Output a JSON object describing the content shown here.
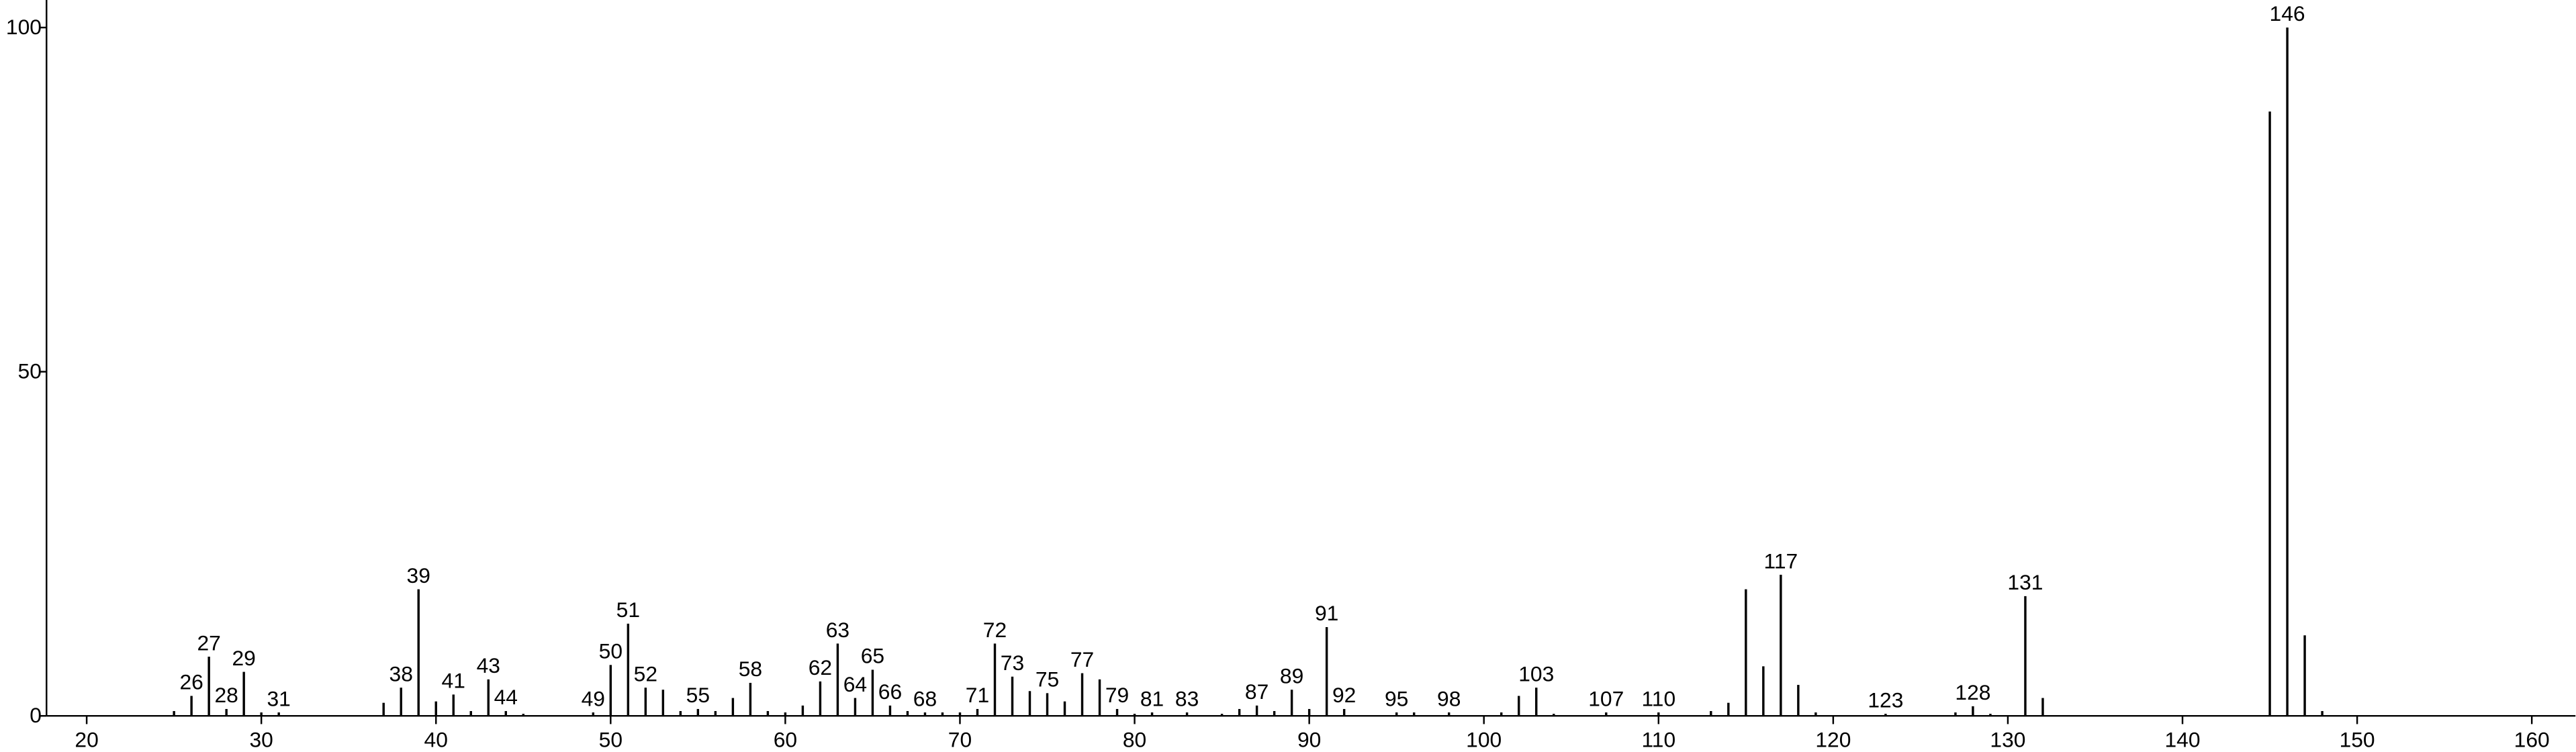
{
  "chart_data": {
    "type": "stem",
    "color": "#000000",
    "xlim": [
      17.7,
      162.5
    ],
    "ylim": [
      0,
      104
    ],
    "xticks": [
      20,
      30,
      40,
      50,
      60,
      70,
      80,
      90,
      100,
      110,
      120,
      130,
      140,
      150,
      160
    ],
    "yticks": [
      0,
      50,
      100
    ],
    "x": [
      25,
      26,
      27,
      28,
      29,
      30,
      31,
      37,
      38,
      39,
      40,
      41,
      42,
      43,
      44,
      45,
      49,
      50,
      51,
      52,
      53,
      54,
      55,
      56,
      57,
      58,
      59,
      60,
      61,
      62,
      63,
      64,
      65,
      66,
      67,
      68,
      69,
      70,
      71,
      72,
      73,
      74,
      75,
      76,
      77,
      78,
      79,
      80,
      81,
      83,
      85,
      86,
      87,
      88,
      89,
      90,
      91,
      92,
      95,
      96,
      98,
      101,
      102,
      103,
      104,
      107,
      110,
      113,
      114,
      115,
      116,
      117,
      118,
      119,
      123,
      127,
      128,
      129,
      131,
      132,
      145,
      146,
      147,
      148
    ],
    "values": [
      0.7,
      2.9,
      8.6,
      1,
      6.4,
      0.5,
      0.5,
      1.9,
      4.1,
      18.4,
      2.1,
      3.1,
      0.7,
      5.3,
      0.7,
      0.3,
      0.5,
      7.4,
      13.4,
      4.1,
      3.8,
      0.7,
      1,
      0.7,
      2.6,
      4.8,
      0.7,
      0.5,
      1.5,
      5,
      10.5,
      2.6,
      6.7,
      1.5,
      0.7,
      0.5,
      0.5,
      0.5,
      1,
      10.5,
      5.7,
      3.6,
      3.3,
      2.1,
      6.2,
      5.3,
      1,
      0.3,
      0.5,
      0.5,
      0.3,
      1,
      1.5,
      0.7,
      3.8,
      1,
      12.9,
      1,
      0.5,
      0.5,
      0.5,
      0.5,
      2.9,
      4.1,
      0.3,
      0.5,
      0.5,
      0.7,
      1.9,
      18.4,
      7.2,
      20.5,
      4.5,
      0.5,
      0.3,
      0.5,
      1.4,
      0.3,
      17.4,
      2.6,
      87.8,
      100,
      11.7,
      0.7
    ],
    "peak_labels": [
      26,
      27,
      28,
      29,
      31,
      38,
      39,
      41,
      43,
      44,
      49,
      50,
      51,
      52,
      55,
      58,
      62,
      63,
      64,
      65,
      66,
      68,
      71,
      72,
      73,
      75,
      77,
      79,
      81,
      83,
      87,
      89,
      91,
      92,
      95,
      98,
      103,
      107,
      110,
      117,
      123,
      128,
      131,
      146
    ]
  }
}
